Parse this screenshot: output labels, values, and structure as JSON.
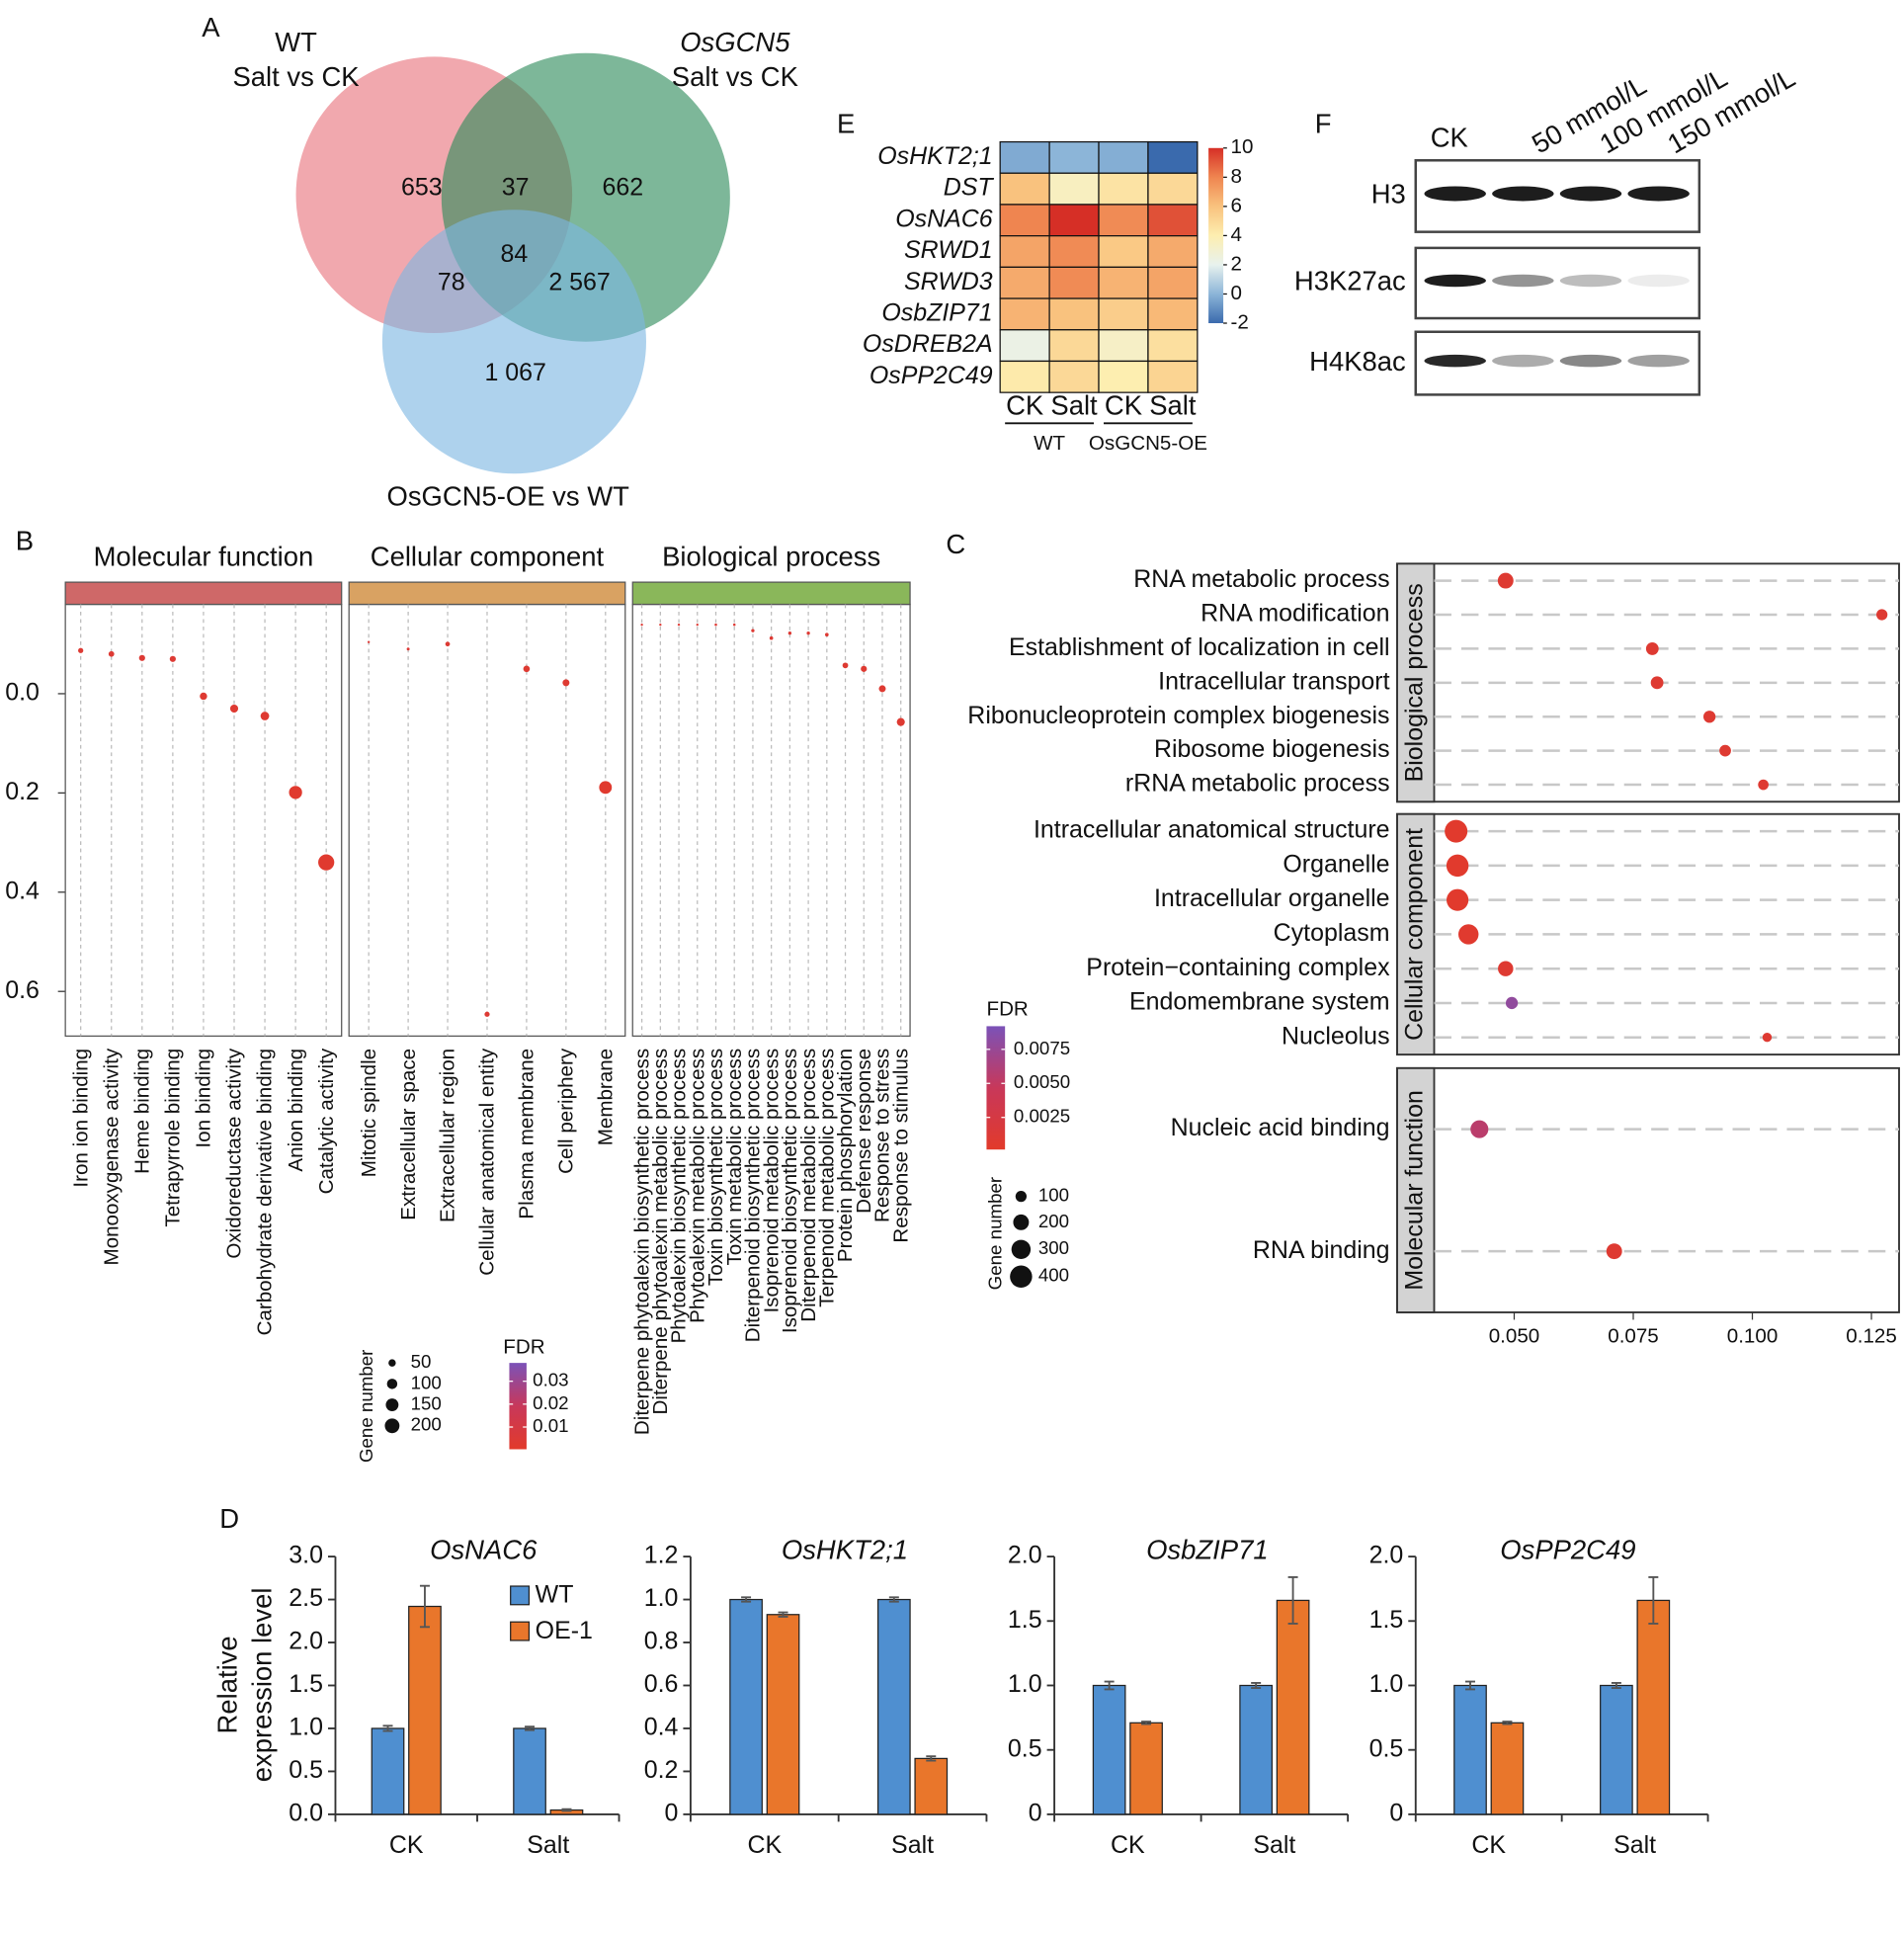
{
  "chart_data": [
    {
      "type": "venn",
      "panel": "A",
      "sets": [
        {
          "label": [
            "WT",
            "Salt vs CK"
          ],
          "color": "#e8737c"
        },
        {
          "label": [
            "OsGCN5",
            "Salt vs CK"
          ],
          "color": "#2d8b5a"
        },
        {
          "label": [
            "OsGCN5-OE vs WT"
          ],
          "color": "#7db6e2"
        }
      ],
      "values": [
        653,
        37,
        662,
        78,
        84,
        2567,
        1067
      ],
      "value_labels": [
        "653",
        "37",
        "662",
        "78",
        "84",
        "2 567",
        "1 067"
      ]
    },
    {
      "type": "heatmap",
      "panel": "E",
      "rows": [
        "OsHKT2;1",
        "DST",
        "OsNAC6",
        "SRWD1",
        "SRWD3",
        "OsbZIP71",
        "OsDREB2A",
        "OsPP2C49"
      ],
      "columns": [
        "CK",
        "Salt",
        "CK",
        "Salt"
      ],
      "groups": [
        "WT",
        "OsGCN5-OE"
      ],
      "values": [
        [
          -0.3,
          0,
          -0.2,
          -2
        ],
        [
          6,
          3.5,
          4.5,
          5
        ],
        [
          8,
          10,
          7.8,
          9.2
        ],
        [
          7,
          7.8,
          5.7,
          6.8
        ],
        [
          6.8,
          7.8,
          6.5,
          7
        ],
        [
          6.5,
          6,
          5.5,
          6.3
        ],
        [
          2.3,
          5,
          3.3,
          4.7
        ],
        [
          4.2,
          5,
          4,
          5.2
        ]
      ],
      "zlim": [
        -2,
        10
      ],
      "zticks": [
        10,
        8,
        6,
        4,
        2,
        0,
        -2
      ],
      "colorscale": [
        "#3a6aad",
        "#8cb5d8",
        "#e8f2ee",
        "#fdeeb0",
        "#f9c27e",
        "#ef8550",
        "#d62f26"
      ]
    },
    {
      "type": "blot",
      "panel": "F",
      "lanes": [
        "CK",
        "50 mmol/L",
        "100 mmol/L",
        "150 mmol/L"
      ],
      "rows": [
        "H3",
        "H3K27ac",
        "H4K8ac"
      ]
    },
    {
      "type": "dotplot",
      "panel": "B",
      "orientation": "vertical",
      "facets": [
        {
          "name": "Molecular function",
          "color": "#cf6868",
          "categories": [
            "Iron ion binding",
            "Monooxygenase activity",
            "Heme binding",
            "Tetrapyrrole binding",
            "Ion binding",
            "Oxidoreductase activity",
            "Carbohydrate derivative binding",
            "Anion binding",
            "Catalytic activity"
          ],
          "values": [
            -0.087,
            -0.08,
            -0.072,
            -0.07,
            0.005,
            0.03,
            0.045,
            0.199,
            0.34
          ],
          "sizes": [
            25,
            30,
            35,
            35,
            50,
            60,
            70,
            160,
            240
          ],
          "fdr": [
            0.004,
            0.004,
            0.004,
            0.004,
            0.003,
            0.003,
            0.003,
            0.002,
            0.002
          ]
        },
        {
          "name": "Cellular component",
          "color": "#d9a262",
          "categories": [
            "Mitotic spindle",
            "Extracellular space",
            "Extracellular region",
            "Cellular anatomical entity",
            "Plasma membrane",
            "Cell periphery",
            "Membrane"
          ],
          "values": [
            -0.104,
            -0.09,
            -0.1,
            0.646,
            -0.05,
            -0.022,
            0.189
          ],
          "sizes": [
            5,
            8,
            20,
            25,
            40,
            45,
            150
          ],
          "fdr": [
            0.005,
            0.005,
            0.004,
            0.004,
            0.003,
            0.003,
            0.002
          ]
        },
        {
          "name": "Biological process",
          "color": "#8ab75a",
          "categories": [
            "Diterpene phytoalexin biosynthetic process",
            "Diterpene phytoalexin metabolic process",
            "Phytoalexin biosynthetic process",
            "Phytoalexin metabolic process",
            "Toxin biosynthetic process",
            "Toxin metabolic process",
            "Diterpenoid biosynthetic process",
            "Isoprenoid metabolic process",
            "Isoprenoid biosynthetic process",
            "Diterpenoid metabolic process",
            "Terpenoid metabolic process",
            "Protein phosphorylation",
            "Defense response",
            "Response to stress",
            "Response to stimulus"
          ],
          "values": [
            -0.139,
            -0.139,
            -0.139,
            -0.139,
            -0.139,
            -0.139,
            -0.127,
            -0.112,
            -0.122,
            -0.122,
            -0.119,
            -0.057,
            -0.05,
            -0.01,
            0.057
          ],
          "sizes": [
            5,
            5,
            5,
            5,
            6,
            6,
            10,
            12,
            10,
            10,
            12,
            30,
            35,
            45,
            60
          ],
          "fdr": [
            0.004,
            0.004,
            0.004,
            0.004,
            0.004,
            0.004,
            0.004,
            0.004,
            0.004,
            0.004,
            0.004,
            0.003,
            0.003,
            0.003,
            0.003
          ]
        }
      ],
      "ylim": [
        -0.18,
        0.69
      ],
      "y_inverted": true,
      "yticks": [
        {
          "value": 0,
          "label": "0.0"
        },
        0.2,
        0.4,
        0.6
      ],
      "size_label": "Gene number",
      "size_ticks": [
        50,
        100,
        150,
        200
      ],
      "color_label": "FDR",
      "clim": [
        0.0003,
        0.038
      ],
      "cticks": [
        0.03,
        0.02,
        0.01
      ],
      "colorscale": [
        "#e23a2b",
        "#c8385a",
        "#7b52b8"
      ]
    },
    {
      "type": "dotplot",
      "panel": "C",
      "orientation": "horizontal",
      "facets": [
        {
          "name": "Biological process",
          "categories": [
            "RNA metabolic process",
            "RNA modification",
            "Establishment of localization in cell",
            "Intracellular transport",
            "Ribonucleoprotein complex biogenesis",
            "Ribosome biogenesis",
            "rRNA metabolic process"
          ],
          "values": [
            0.0482,
            0.1272,
            0.079,
            0.08,
            0.091,
            0.0943,
            0.1023
          ],
          "sizes": [
            200,
            100,
            130,
            130,
            120,
            110,
            90
          ],
          "fdr": [
            0.0008,
            0.0008,
            0.0008,
            0.0008,
            0.0008,
            0.0008,
            0.0008
          ]
        },
        {
          "name": "Cellular component",
          "categories": [
            "Intracellular anatomical structure",
            "Organelle",
            "Intracellular organelle",
            "Cytoplasm",
            "Protein−containing complex",
            "Endomembrane system",
            "Nucleolus"
          ],
          "values": [
            0.0378,
            0.0381,
            0.0381,
            0.0404,
            0.0482,
            0.0495,
            0.1031
          ],
          "sizes": [
            420,
            400,
            390,
            330,
            190,
            120,
            70
          ],
          "fdr": [
            0.0003,
            0.0003,
            0.0003,
            0.0005,
            0.0008,
            0.0079,
            0.0008
          ]
        },
        {
          "name": "Molecular function",
          "categories": [
            "Nucleic acid binding",
            "RNA binding"
          ],
          "values": [
            0.0427,
            0.071
          ],
          "sizes": [
            260,
            200
          ],
          "fdr": [
            0.0055,
            0.0008
          ]
        }
      ],
      "xlim": [
        0.0332,
        0.1308
      ],
      "xticks": [
        {
          "value": 0.05,
          "label": "0.050"
        },
        0.075,
        {
          "value": 0.1,
          "label": "0.100"
        },
        0.125
      ],
      "color_label": "FDR",
      "clim": [
        0.00014,
        0.0092
      ],
      "cticks": [
        0.0075,
        {
          "value": 0.005,
          "label": "0.0050"
        },
        0.0025
      ],
      "size_label": "Gene number",
      "size_ticks": [
        100,
        200,
        300,
        400
      ],
      "colorscale": [
        "#e23a2b",
        "#c8385a",
        "#7b52b8"
      ]
    },
    {
      "type": "bar",
      "panel": "D",
      "title": "OsNAC6",
      "ylabel": [
        "Relative",
        "expression level"
      ],
      "categories": [
        "CK",
        "Salt"
      ],
      "series": [
        {
          "name": "WT",
          "color": "#4f8fd0",
          "values": [
            1,
            1
          ],
          "errors": [
            0.03,
            0.02
          ]
        },
        {
          "name": "OE-1",
          "color": "#e9762b",
          "values": [
            2.42,
            0.05
          ],
          "errors": [
            0.24,
            0.01
          ]
        }
      ],
      "ylim": [
        0,
        3
      ],
      "yticks": [
        {
          "value": 0,
          "label": "0.0"
        },
        0.5,
        {
          "value": 1,
          "label": "1.0"
        },
        1.5,
        {
          "value": 2,
          "label": "2.0"
        },
        2.5,
        {
          "value": 3,
          "label": "3.0"
        }
      ]
    },
    {
      "type": "bar",
      "title": "OsHKT2;1",
      "categories": [
        "CK",
        "Salt"
      ],
      "series": [
        {
          "color": "#4f8fd0",
          "values": [
            1,
            1
          ],
          "errors": [
            0.01,
            0.01
          ]
        },
        {
          "color": "#e9762b",
          "values": [
            0.93,
            0.26
          ],
          "errors": [
            0.01,
            0.01
          ]
        }
      ],
      "ylim": [
        0,
        1.2
      ],
      "yticks": [
        0,
        0.2,
        0.4,
        0.6,
        0.8,
        {
          "value": 1,
          "label": "1.0"
        },
        1.2
      ]
    },
    {
      "type": "bar",
      "title": "OsbZIP71",
      "categories": [
        "CK",
        "Salt"
      ],
      "series": [
        {
          "color": "#4f8fd0",
          "values": [
            1,
            1
          ],
          "errors": [
            0.03,
            0.02
          ]
        },
        {
          "color": "#e9762b",
          "values": [
            0.71,
            1.66
          ],
          "errors": [
            0.01,
            0.18
          ]
        }
      ],
      "ylim": [
        0,
        2
      ],
      "yticks": [
        0,
        0.5,
        {
          "value": 1,
          "label": "1.0"
        },
        1.5,
        {
          "value": 2,
          "label": "2.0"
        }
      ]
    },
    {
      "type": "bar",
      "title": "OsPP2C49",
      "categories": [
        "CK",
        "Salt"
      ],
      "series": [
        {
          "color": "#4f8fd0",
          "values": [
            1,
            1
          ],
          "errors": [
            0.03,
            0.02
          ]
        },
        {
          "color": "#e9762b",
          "values": [
            0.71,
            1.66
          ],
          "errors": [
            0.01,
            0.18
          ]
        }
      ],
      "ylim": [
        0,
        2
      ],
      "yticks": [
        0,
        0.5,
        {
          "value": 1,
          "label": "1.0"
        },
        1.5,
        {
          "value": 2,
          "label": "2.0"
        }
      ]
    }
  ]
}
